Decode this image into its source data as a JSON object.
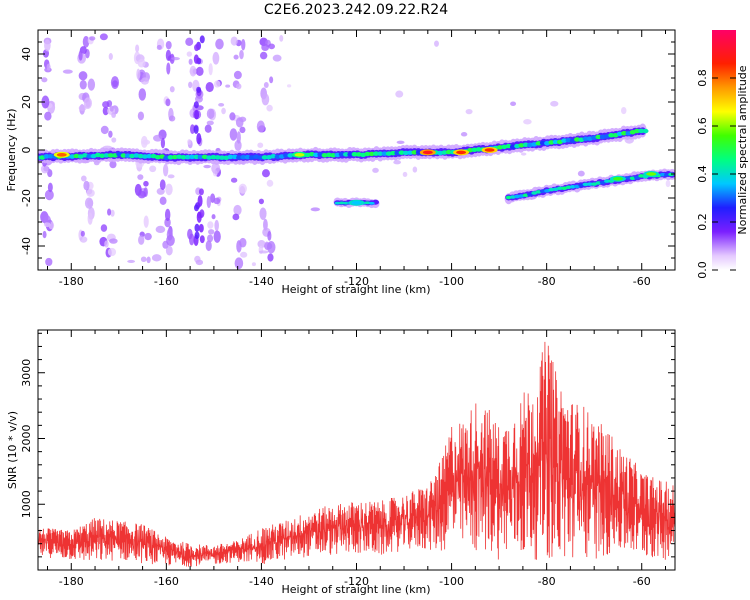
{
  "figure_title": "C2E6.2023.242.09.22.R24",
  "chart_data": [
    {
      "type": "heatmap",
      "title": "",
      "xlabel": "Height of straight line (km)",
      "ylabel": "Frequency (Hz)",
      "xlim": [
        -187,
        -53
      ],
      "ylim": [
        -50,
        50
      ],
      "xticks": [
        -180,
        -160,
        -140,
        -120,
        -100,
        -80,
        -60
      ],
      "yticks": [
        -40,
        -20,
        0,
        20,
        40
      ],
      "colorbar": {
        "label": "Normalized spectral amplitude",
        "range": [
          0.0,
          1.0
        ],
        "ticks": [
          0.0,
          0.2,
          0.4,
          0.6,
          0.8
        ]
      },
      "main_ridge": [
        [
          -187,
          -3
        ],
        [
          -170,
          -2
        ],
        [
          -160,
          -3
        ],
        [
          -150,
          -3
        ],
        [
          -140,
          -3
        ],
        [
          -130,
          -2
        ],
        [
          -120,
          -2
        ],
        [
          -110,
          -1
        ],
        [
          -100,
          -1
        ],
        [
          -90,
          1
        ],
        [
          -80,
          3
        ],
        [
          -70,
          5
        ],
        [
          -60,
          8
        ]
      ],
      "secondary_ridge": [
        [
          -88,
          -20
        ],
        [
          -80,
          -17
        ],
        [
          -70,
          -14
        ],
        [
          -60,
          -11
        ],
        [
          -53,
          -10
        ]
      ],
      "isolated_blob": [
        [
          -124,
          -22
        ],
        [
          -116,
          -22
        ]
      ],
      "hotspots": [
        {
          "x": -182,
          "y": -2,
          "amplitude": 0.9
        },
        {
          "x": -105,
          "y": -1,
          "amplitude": 1.0
        },
        {
          "x": -98,
          "y": -1,
          "amplitude": 0.95
        },
        {
          "x": -92,
          "y": 0,
          "amplitude": 0.95
        },
        {
          "x": -132,
          "y": -2,
          "amplitude": 0.7
        },
        {
          "x": -120,
          "y": -22,
          "amplitude": 0.4
        },
        {
          "x": -65,
          "y": -12,
          "amplitude": 0.6
        },
        {
          "x": -58,
          "y": -10,
          "amplitude": 0.65
        }
      ]
    },
    {
      "type": "line",
      "title": "",
      "xlabel": "Height of straight line (km)",
      "ylabel": "SNR (10 * v/v)",
      "xlim": [
        -187,
        -53
      ],
      "ylim": [
        0,
        3650
      ],
      "xticks": [
        -180,
        -160,
        -140,
        -120,
        -100,
        -80,
        -60
      ],
      "yticks": [
        1000,
        2000,
        3000
      ],
      "series_color": "#ee3333",
      "envelope": {
        "x": [
          -187,
          -180,
          -175,
          -170,
          -165,
          -160,
          -155,
          -150,
          -145,
          -140,
          -135,
          -130,
          -125,
          -120,
          -115,
          -110,
          -105,
          -102,
          -100,
          -97,
          -95,
          -92,
          -90,
          -88,
          -85,
          -82,
          -80,
          -78,
          -75,
          -72,
          -70,
          -67,
          -65,
          -62,
          -60,
          -57,
          -55,
          -53
        ],
        "upper": [
          650,
          600,
          800,
          750,
          700,
          500,
          400,
          380,
          450,
          650,
          750,
          900,
          1000,
          1050,
          1050,
          1150,
          1300,
          1700,
          2250,
          2300,
          2600,
          2450,
          2200,
          2300,
          2700,
          3000,
          3600,
          3000,
          2600,
          2500,
          2300,
          2150,
          1900,
          1700,
          1500,
          1400,
          1350,
          1300
        ],
        "lower": [
          200,
          150,
          100,
          150,
          100,
          60,
          50,
          80,
          120,
          80,
          150,
          200,
          220,
          250,
          200,
          300,
          300,
          250,
          380,
          300,
          250,
          250,
          150,
          200,
          150,
          150,
          150,
          100,
          100,
          150,
          150,
          200,
          250,
          200,
          200,
          150,
          150,
          250
        ]
      }
    }
  ]
}
